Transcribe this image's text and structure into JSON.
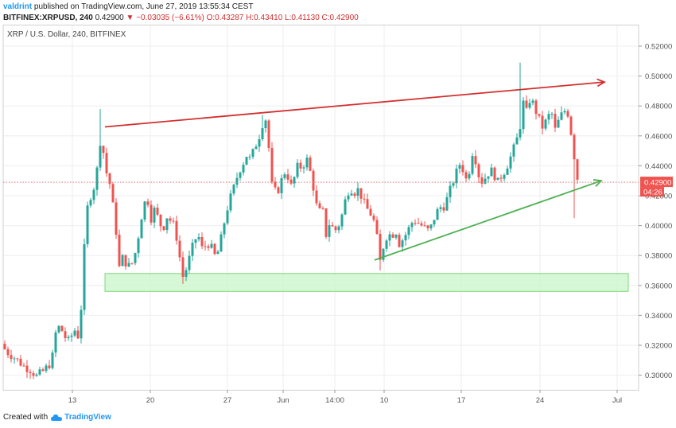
{
  "header": {
    "author": "valdrint",
    "published_text": "published on TradingView.com, June 27, 2019 13:55:34 CEST",
    "symbol": "BITFINEX:XRPUSD, 240",
    "last_price": "0.42900",
    "change_arrow": "▼",
    "change": "−0.03035 (−6.61%)",
    "ohlc": "O:0.43287 H:0.43410 L:0.41130 C:0.42900"
  },
  "chart_data": {
    "type": "candlestick",
    "title": "XRP / U.S. Dollar, 240, BITFINEX",
    "x_tick_labels": [
      "13",
      "20",
      "27",
      "Jun",
      "14:00",
      "10",
      "17",
      "24",
      "Jul"
    ],
    "y_tick_labels": [
      "0.52000",
      "0.50000",
      "0.48000",
      "0.46000",
      "0.44000",
      "0.42000",
      "0.40000",
      "0.38000",
      "0.36000",
      "0.34000",
      "0.32000",
      "0.30000"
    ],
    "ylim": [
      0.291,
      0.531
    ],
    "current_price_label": "0.42900",
    "countdown_label": "04:26",
    "colors": {
      "up": "#26a69a",
      "down": "#ef5350",
      "resistance": "#d32f2f",
      "support": "#4caf50",
      "zone": "#c8f5c8"
    },
    "price_path": [
      [
        0,
        0.321
      ],
      [
        10,
        0.315
      ],
      [
        20,
        0.311
      ],
      [
        30,
        0.306
      ],
      [
        40,
        0.303
      ],
      [
        45,
        0.299
      ],
      [
        55,
        0.303
      ],
      [
        65,
        0.309
      ],
      [
        70,
        0.328
      ],
      [
        75,
        0.333
      ],
      [
        85,
        0.322
      ],
      [
        95,
        0.331
      ],
      [
        100,
        0.323
      ],
      [
        105,
        0.378
      ],
      [
        110,
        0.412
      ],
      [
        115,
        0.422
      ],
      [
        120,
        0.428
      ],
      [
        127,
        0.461
      ],
      [
        133,
        0.437
      ],
      [
        138,
        0.428
      ],
      [
        145,
        0.402
      ],
      [
        150,
        0.372
      ],
      [
        155,
        0.38
      ],
      [
        160,
        0.372
      ],
      [
        168,
        0.376
      ],
      [
        175,
        0.396
      ],
      [
        180,
        0.413
      ],
      [
        185,
        0.419
      ],
      [
        190,
        0.405
      ],
      [
        195,
        0.412
      ],
      [
        200,
        0.402
      ],
      [
        205,
        0.398
      ],
      [
        210,
        0.406
      ],
      [
        215,
        0.403
      ],
      [
        220,
        0.399
      ],
      [
        225,
        0.382
      ],
      [
        230,
        0.366
      ],
      [
        235,
        0.372
      ],
      [
        240,
        0.382
      ],
      [
        245,
        0.391
      ],
      [
        250,
        0.392
      ],
      [
        255,
        0.383
      ],
      [
        260,
        0.389
      ],
      [
        265,
        0.386
      ],
      [
        270,
        0.38
      ],
      [
        275,
        0.383
      ],
      [
        280,
        0.397
      ],
      [
        285,
        0.41
      ],
      [
        290,
        0.419
      ],
      [
        295,
        0.427
      ],
      [
        300,
        0.436
      ],
      [
        305,
        0.441
      ],
      [
        310,
        0.447
      ],
      [
        315,
        0.444
      ],
      [
        320,
        0.452
      ],
      [
        325,
        0.458
      ],
      [
        330,
        0.468
      ],
      [
        335,
        0.472
      ],
      [
        338,
        0.452
      ],
      [
        342,
        0.427
      ],
      [
        348,
        0.421
      ],
      [
        355,
        0.432
      ],
      [
        360,
        0.438
      ],
      [
        365,
        0.425
      ],
      [
        370,
        0.432
      ],
      [
        375,
        0.441
      ],
      [
        380,
        0.438
      ],
      [
        385,
        0.446
      ],
      [
        390,
        0.436
      ],
      [
        395,
        0.423
      ],
      [
        400,
        0.407
      ],
      [
        405,
        0.413
      ],
      [
        410,
        0.394
      ],
      [
        415,
        0.403
      ],
      [
        420,
        0.396
      ],
      [
        425,
        0.399
      ],
      [
        430,
        0.407
      ],
      [
        435,
        0.419
      ],
      [
        440,
        0.426
      ],
      [
        445,
        0.422
      ],
      [
        450,
        0.424
      ],
      [
        455,
        0.419
      ],
      [
        460,
        0.412
      ],
      [
        465,
        0.409
      ],
      [
        470,
        0.403
      ],
      [
        475,
        0.389
      ],
      [
        478,
        0.376
      ],
      [
        482,
        0.386
      ],
      [
        488,
        0.396
      ],
      [
        492,
        0.392
      ],
      [
        497,
        0.398
      ],
      [
        502,
        0.388
      ],
      [
        508,
        0.392
      ],
      [
        515,
        0.399
      ],
      [
        520,
        0.404
      ],
      [
        528,
        0.401
      ],
      [
        535,
        0.398
      ],
      [
        540,
        0.396
      ],
      [
        545,
        0.404
      ],
      [
        552,
        0.412
      ],
      [
        558,
        0.413
      ],
      [
        563,
        0.419
      ],
      [
        568,
        0.427
      ],
      [
        572,
        0.433
      ],
      [
        578,
        0.441
      ],
      [
        583,
        0.437
      ],
      [
        588,
        0.427
      ],
      [
        592,
        0.447
      ],
      [
        596,
        0.451
      ],
      [
        600,
        0.437
      ],
      [
        605,
        0.429
      ],
      [
        610,
        0.432
      ],
      [
        615,
        0.436
      ],
      [
        620,
        0.437
      ],
      [
        625,
        0.428
      ],
      [
        630,
        0.433
      ],
      [
        635,
        0.437
      ],
      [
        640,
        0.443
      ],
      [
        645,
        0.45
      ],
      [
        650,
        0.458
      ],
      [
        655,
        0.469
      ],
      [
        658,
        0.482
      ],
      [
        662,
        0.476
      ],
      [
        667,
        0.486
      ],
      [
        672,
        0.479
      ],
      [
        677,
        0.472
      ],
      [
        682,
        0.466
      ],
      [
        688,
        0.471
      ],
      [
        693,
        0.477
      ],
      [
        698,
        0.464
      ],
      [
        703,
        0.471
      ],
      [
        708,
        0.476
      ],
      [
        713,
        0.478
      ],
      [
        717,
        0.466
      ],
      [
        721,
        0.451
      ],
      [
        724,
        0.437
      ],
      [
        727,
        0.429
      ]
    ],
    "annotations": {
      "resistance_line": {
        "start": [
          132,
          0.466
        ],
        "end": [
          760,
          0.496
        ]
      },
      "support_line": {
        "start": [
          471,
          0.377
        ],
        "end": [
          756,
          0.43
        ]
      },
      "support_zone": {
        "x_start": 132,
        "x_end": 790,
        "y_low": 0.356,
        "y_high": 0.368
      }
    }
  },
  "footer": {
    "created_with": "Created with",
    "brand": "TradingView"
  }
}
